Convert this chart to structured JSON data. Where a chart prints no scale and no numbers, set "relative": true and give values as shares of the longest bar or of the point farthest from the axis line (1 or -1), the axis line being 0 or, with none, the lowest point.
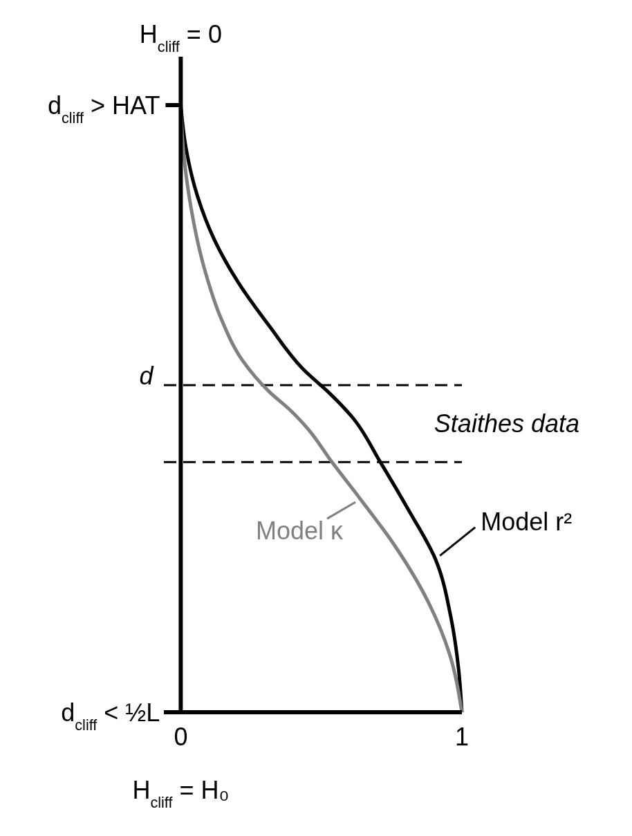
{
  "chart_data": {
    "type": "line",
    "relative": true,
    "xlabel": "H$_{cliff}$ = H₀",
    "ylabel": "d",
    "annotations": [
      "H$_{cliff}$ = 0",
      "Staithes data",
      "d$_{cliff}$ > HAT",
      "d$_{cliff}$ < ½L"
    ],
    "xlim": [
      -0.06,
      1
    ],
    "xticks": [
      0,
      1
    ],
    "ref_lines": [
      {
        "axis": "y",
        "value": 0.539,
        "line_style": "dashed"
      },
      {
        "axis": "y",
        "value": 0.412,
        "line_style": "dashed"
      }
    ],
    "series": [
      {
        "name": "Model r²",
        "color": "#000000",
        "x": [
          0,
          0.017,
          0.059,
          0.12,
          0.206,
          0.317,
          0.44,
          0.526,
          0.612,
          0.71,
          0.808,
          0.907,
          0.961,
          0.988,
          1
        ],
        "values": [
          1,
          0.934,
          0.851,
          0.778,
          0.707,
          0.635,
          0.563,
          0.527,
          0.485,
          0.412,
          0.335,
          0.251,
          0.156,
          0.072,
          0
        ]
      },
      {
        "name": "Model κ",
        "color": "#808080",
        "x": [
          0,
          0.01,
          0.034,
          0.084,
          0.145,
          0.219,
          0.317,
          0.391,
          0.452,
          0.538,
          0.636,
          0.759,
          0.882,
          0.956,
          1
        ],
        "values": [
          0.994,
          0.922,
          0.838,
          0.731,
          0.647,
          0.58,
          0.527,
          0.497,
          0.467,
          0.412,
          0.353,
          0.276,
          0.18,
          0.096,
          0
        ]
      }
    ]
  }
}
